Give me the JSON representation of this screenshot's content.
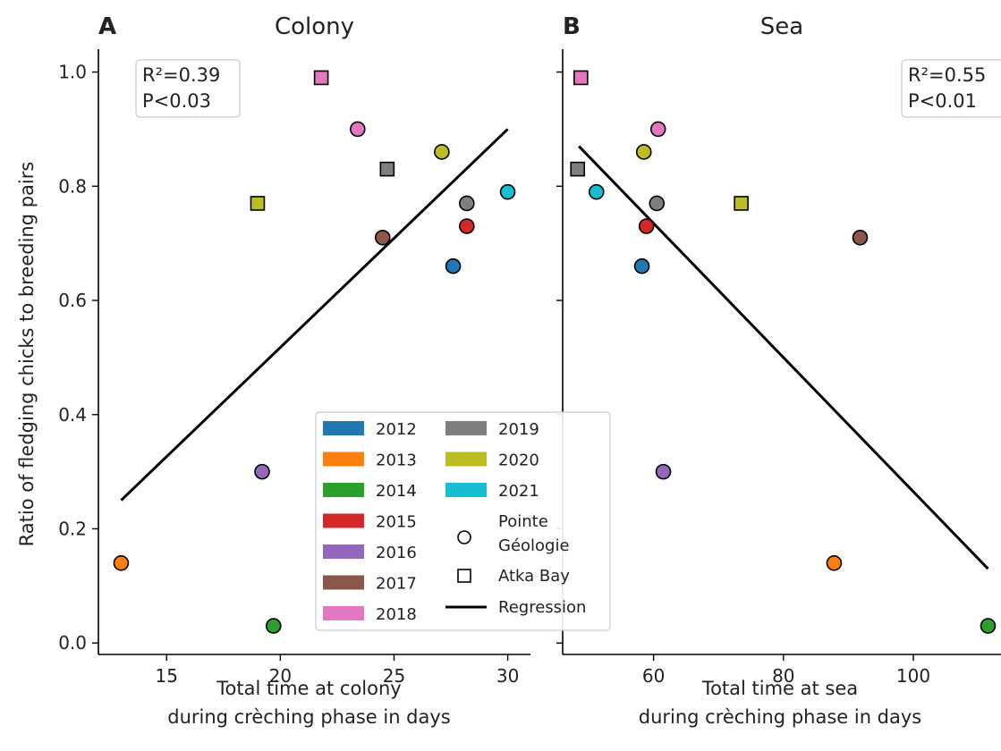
{
  "ylabel": "Ratio of fledging chicks to breeding pairs",
  "legend": {
    "years": [
      "2012",
      "2013",
      "2014",
      "2015",
      "2016",
      "2017",
      "2018",
      "2019",
      "2020",
      "2021"
    ],
    "pointe_label_line1": "Pointe",
    "pointe_label_line2": "Géologie",
    "atka_label": "Atka Bay",
    "regression_label": "Regression"
  },
  "colors": {
    "2012": "#1f77b4",
    "2013": "#ff7f0e",
    "2014": "#2ca02c",
    "2015": "#d62728",
    "2016": "#9467bd",
    "2017": "#8c564b",
    "2018": "#e377c2",
    "2019": "#7f7f7f",
    "2020": "#bcbd22",
    "2021": "#17becf"
  },
  "chart_data": [
    {
      "type": "scatter",
      "panel": "A",
      "title": "Colony",
      "xlabel_line1": "Total time at colony",
      "xlabel_line2": "during crèching phase in days",
      "ylabel": "Ratio of fledging chicks to breeding pairs",
      "xlim": [
        12.0,
        31.0
      ],
      "ylim": [
        -0.02,
        1.04
      ],
      "xticks": [
        15,
        20,
        25,
        30
      ],
      "xtick_labels": [
        "15",
        "20",
        "25",
        "30"
      ],
      "yticks": [
        0.0,
        0.2,
        0.4,
        0.6,
        0.8,
        1.0
      ],
      "ytick_labels": [
        "0.0",
        "0.2",
        "0.4",
        "0.6",
        "0.8",
        "1.0"
      ],
      "stats_line1": "R²=0.39",
      "stats_line2": "P<0.03",
      "regression": {
        "x": [
          13.0,
          30.0
        ],
        "y": [
          0.25,
          0.9
        ]
      },
      "points": [
        {
          "year": "2012",
          "site": "Pointe Géologie",
          "x": 27.6,
          "y": 0.66
        },
        {
          "year": "2013",
          "site": "Pointe Géologie",
          "x": 13.0,
          "y": 0.14
        },
        {
          "year": "2014",
          "site": "Pointe Géologie",
          "x": 19.7,
          "y": 0.03
        },
        {
          "year": "2015",
          "site": "Pointe Géologie",
          "x": 28.2,
          "y": 0.73
        },
        {
          "year": "2016",
          "site": "Pointe Géologie",
          "x": 19.2,
          "y": 0.3
        },
        {
          "year": "2017",
          "site": "Pointe Géologie",
          "x": 24.5,
          "y": 0.71
        },
        {
          "year": "2018",
          "site": "Pointe Géologie",
          "x": 23.4,
          "y": 0.9
        },
        {
          "year": "2018",
          "site": "Atka Bay",
          "x": 21.8,
          "y": 0.99
        },
        {
          "year": "2019",
          "site": "Pointe Géologie",
          "x": 28.2,
          "y": 0.77
        },
        {
          "year": "2019",
          "site": "Atka Bay",
          "x": 24.7,
          "y": 0.83
        },
        {
          "year": "2020",
          "site": "Pointe Géologie",
          "x": 27.1,
          "y": 0.86
        },
        {
          "year": "2020",
          "site": "Atka Bay",
          "x": 19.0,
          "y": 0.77
        },
        {
          "year": "2021",
          "site": "Pointe Géologie",
          "x": 30.0,
          "y": 0.79
        }
      ]
    },
    {
      "type": "scatter",
      "panel": "B",
      "title": "Sea",
      "xlabel_line1": "Total time at sea",
      "xlabel_line2": "during crèching phase in days",
      "xlim": [
        46.0,
        113.5
      ],
      "ylim": [
        -0.02,
        1.04
      ],
      "xticks": [
        60,
        80,
        100
      ],
      "xtick_labels": [
        "60",
        "80",
        "100"
      ],
      "yticks": [
        0.0,
        0.2,
        0.4,
        0.6,
        0.8,
        1.0
      ],
      "stats_line1": "R²=0.55",
      "stats_line2": "P<0.01",
      "regression": {
        "x": [
          48.5,
          111.5
        ],
        "y": [
          0.87,
          0.13
        ]
      },
      "points": [
        {
          "year": "2012",
          "site": "Pointe Géologie",
          "x": 58.2,
          "y": 0.66
        },
        {
          "year": "2013",
          "site": "Pointe Géologie",
          "x": 87.8,
          "y": 0.14
        },
        {
          "year": "2014",
          "site": "Pointe Géologie",
          "x": 111.5,
          "y": 0.03
        },
        {
          "year": "2015",
          "site": "Pointe Géologie",
          "x": 58.9,
          "y": 0.73
        },
        {
          "year": "2016",
          "site": "Pointe Géologie",
          "x": 61.5,
          "y": 0.3
        },
        {
          "year": "2017",
          "site": "Pointe Géologie",
          "x": 91.8,
          "y": 0.71
        },
        {
          "year": "2018",
          "site": "Pointe Géologie",
          "x": 60.7,
          "y": 0.9
        },
        {
          "year": "2018",
          "site": "Atka Bay",
          "x": 48.8,
          "y": 0.99
        },
        {
          "year": "2019",
          "site": "Pointe Géologie",
          "x": 60.5,
          "y": 0.77
        },
        {
          "year": "2019",
          "site": "Atka Bay",
          "x": 48.3,
          "y": 0.83
        },
        {
          "year": "2020",
          "site": "Pointe Géologie",
          "x": 58.5,
          "y": 0.86
        },
        {
          "year": "2020",
          "site": "Atka Bay",
          "x": 73.5,
          "y": 0.77
        },
        {
          "year": "2021",
          "site": "Pointe Géologie",
          "x": 51.2,
          "y": 0.79
        }
      ]
    }
  ]
}
